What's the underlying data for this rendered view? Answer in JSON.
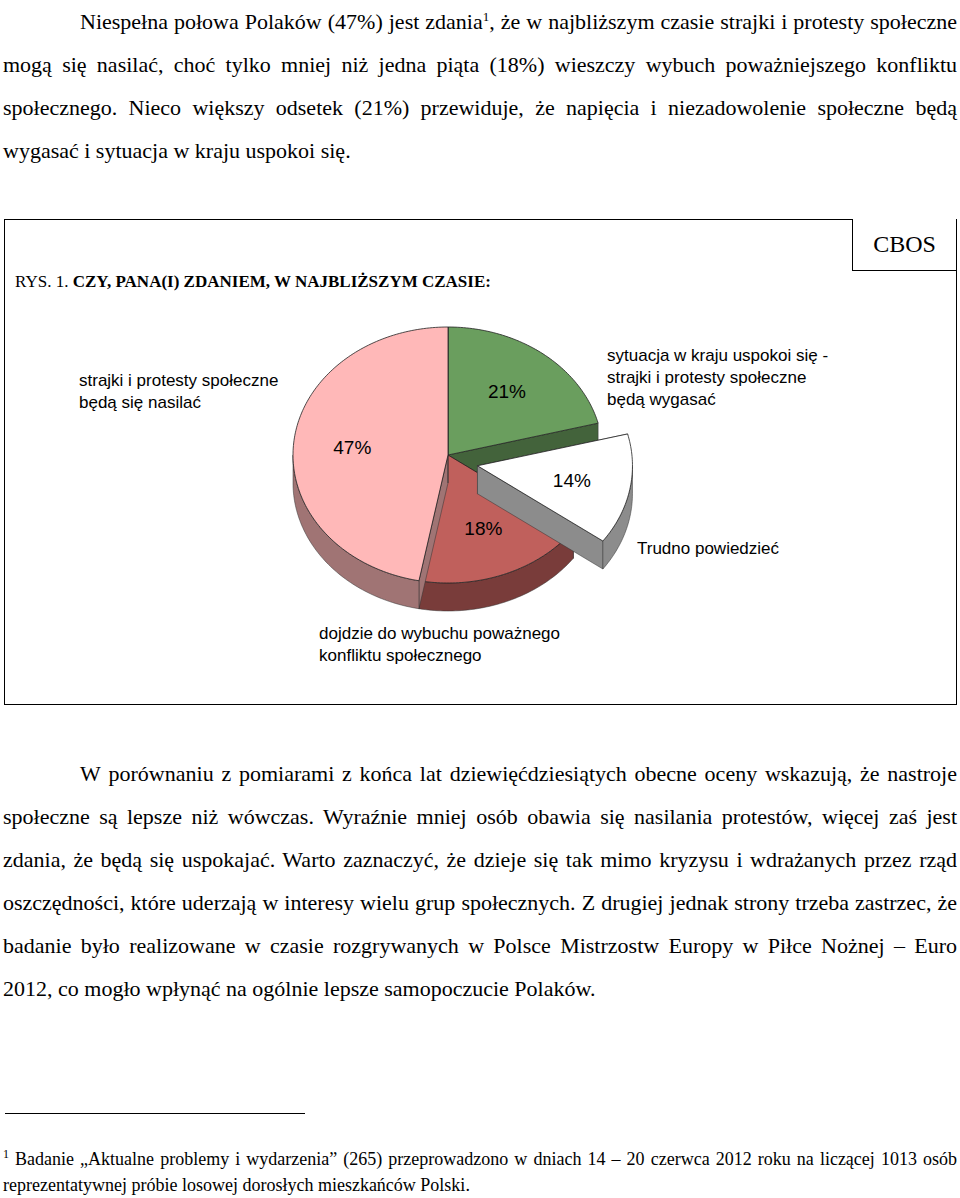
{
  "chart_data": {
    "type": "pie",
    "title": "RYS. 1. CZY, PANA(I) ZDANIEM, W NAJBLIŻSZYM CZASIE:",
    "source": "CBOS",
    "categories": [
      "sytuacja w kraju uspokoi się - strajki i protesty społeczne będą wygasać",
      "Trudno powiedzieć",
      "dojdzie do wybuchu poważnego konfliktu społecznego",
      "strajki i protesty społeczne będą się nasilać"
    ],
    "values": [
      21,
      14,
      18,
      47
    ],
    "value_labels": [
      "21%",
      "14%",
      "18%",
      "47%"
    ],
    "colors": [
      "#6a9e5e",
      "#ffffff",
      "#c0605c",
      "#ffb8b8"
    ],
    "data_labels": true
  },
  "document": {
    "paragraph_1": {
      "text_before_mark": "Niespełna połowa Polaków (47%) jest zdania",
      "footnote_mark": "1",
      "text_after_mark": ", że w najbliższym czasie strajki i protesty społeczne mogą się nasilać, choć tylko mniej niż jedna piąta (18%) wieszczy wybuch poważniejszego konfliktu społecznego. Nieco większy odsetek (21%) przewiduje, że napięcia i niezadowolenie społeczne będą wygasać i sytuacja w kraju uspokoi się."
    },
    "paragraph_2": "W porównaniu z pomiarami z końca lat dziewięćdziesiątych obecne oceny wskazują, że nastroje społeczne są lepsze niż wówczas. Wyraźnie mniej osób obawia się nasilania protestów, więcej zaś jest zdania, że będą się uspokajać. Warto zaznaczyć, że dzieje się tak mimo kryzysu i wdrażanych przez rząd oszczędności, które uderzają w interesy wielu grup społecznych. Z drugiej jednak strony trzeba zastrzec, że badanie było realizowane w czasie rozgrywanych w Polsce Mistrzostw Europy w Piłce Nożnej – Euro 2012, co mogło wpłynąć na ogólnie lepsze samopoczucie Polaków.",
    "footnote": {
      "mark": "1",
      "text": "Badanie „Aktualne problemy i wydarzenia” (265) przeprowadzono w dniach 14 – 20 czerwca 2012 roku na liczącej 1013 osób reprezentatywnej próbie losowej dorosłych mieszkańców Polski."
    }
  }
}
